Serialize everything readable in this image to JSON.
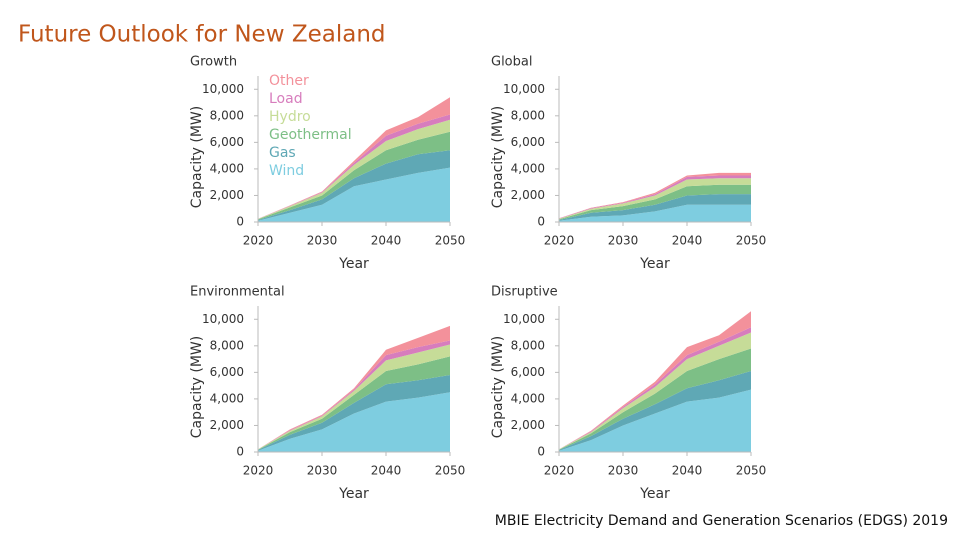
{
  "title": "Future Outlook for New Zealand",
  "source": "MBIE Electricity Demand and Generation Scenarios (EDGS) 2019",
  "chart_data": [
    {
      "type": "area",
      "stacked": true,
      "title": "Growth",
      "x_label": "Year",
      "y_label": "Capacity (MW)",
      "legend": true,
      "x": [
        2020,
        2025,
        2030,
        2035,
        2040,
        2045,
        2050
      ],
      "xlim": [
        2020,
        2050
      ],
      "xticks": [
        2020,
        2030,
        2040,
        2050
      ],
      "ylim": [
        0,
        11000
      ],
      "yticks": [
        0,
        {
          "value": 2000,
          "label": "2,000"
        },
        {
          "value": 4000,
          "label": "4,000"
        },
        {
          "value": 6000,
          "label": "6,000"
        },
        {
          "value": 8000,
          "label": "8,000"
        },
        {
          "value": 10000,
          "label": "10,000"
        }
      ],
      "series": [
        {
          "name": "Wind",
          "color": "#7ecde0",
          "values": [
            100,
            700,
            1300,
            2700,
            3200,
            3700,
            4100
          ]
        },
        {
          "name": "Gas",
          "color": "#5fa8b5",
          "values": [
            50,
            200,
            400,
            600,
            1200,
            1400,
            1300
          ]
        },
        {
          "name": "Geothermal",
          "color": "#7dbf86",
          "values": [
            50,
            200,
            300,
            600,
            1000,
            1100,
            1400
          ]
        },
        {
          "name": "Hydro",
          "color": "#c6dc98",
          "values": [
            30,
            100,
            200,
            400,
            700,
            800,
            900
          ]
        },
        {
          "name": "Load",
          "color": "#d77dbd",
          "values": [
            10,
            30,
            50,
            150,
            400,
            400,
            400
          ]
        },
        {
          "name": "Other",
          "color": "#f3919b",
          "values": [
            10,
            20,
            50,
            150,
            400,
            500,
            1300
          ]
        }
      ]
    },
    {
      "type": "area",
      "stacked": true,
      "title": "Global",
      "x_label": "Year",
      "y_label": "Capacity (MW)",
      "x": [
        2020,
        2025,
        2030,
        2035,
        2040,
        2045,
        2050
      ],
      "xlim": [
        2020,
        2050
      ],
      "xticks": [
        2020,
        2030,
        2040,
        2050
      ],
      "ylim": [
        0,
        11000
      ],
      "yticks": [
        0,
        {
          "value": 2000,
          "label": "2,000"
        },
        {
          "value": 4000,
          "label": "4,000"
        },
        {
          "value": 6000,
          "label": "6,000"
        },
        {
          "value": 8000,
          "label": "8,000"
        },
        {
          "value": 10000,
          "label": "10,000"
        }
      ],
      "series": [
        {
          "color": "#7ecde0",
          "values": [
            100,
            400,
            500,
            800,
            1300,
            1300,
            1300
          ]
        },
        {
          "color": "#5fa8b5",
          "values": [
            50,
            300,
            400,
            500,
            700,
            800,
            800
          ]
        },
        {
          "color": "#7dbf86",
          "values": [
            50,
            200,
            300,
            400,
            700,
            700,
            700
          ]
        },
        {
          "color": "#c6dc98",
          "values": [
            50,
            100,
            200,
            300,
            500,
            500,
            500
          ]
        },
        {
          "color": "#d77dbd",
          "values": [
            20,
            50,
            50,
            100,
            200,
            200,
            200
          ]
        },
        {
          "color": "#f3919b",
          "values": [
            10,
            30,
            50,
            100,
            100,
            200,
            200
          ]
        }
      ]
    },
    {
      "type": "area",
      "stacked": true,
      "title": "Environmental",
      "x_label": "Year",
      "y_label": "Capacity (MW)",
      "x": [
        2020,
        2025,
        2030,
        2035,
        2040,
        2045,
        2050
      ],
      "xlim": [
        2020,
        2050
      ],
      "xticks": [
        2020,
        2030,
        2040,
        2050
      ],
      "ylim": [
        0,
        11000
      ],
      "yticks": [
        0,
        {
          "value": 2000,
          "label": "2,000"
        },
        {
          "value": 4000,
          "label": "4,000"
        },
        {
          "value": 6000,
          "label": "6,000"
        },
        {
          "value": 8000,
          "label": "8,000"
        },
        {
          "value": 10000,
          "label": "10,000"
        }
      ],
      "series": [
        {
          "color": "#7ecde0",
          "values": [
            100,
            1000,
            1700,
            2900,
            3800,
            4100,
            4500
          ]
        },
        {
          "color": "#5fa8b5",
          "values": [
            50,
            300,
            500,
            800,
            1300,
            1300,
            1300
          ]
        },
        {
          "color": "#7dbf86",
          "values": [
            30,
            200,
            300,
            600,
            1000,
            1200,
            1400
          ]
        },
        {
          "color": "#c6dc98",
          "values": [
            20,
            100,
            200,
            300,
            800,
            900,
            900
          ]
        },
        {
          "color": "#d77dbd",
          "values": [
            0,
            50,
            50,
            100,
            400,
            400,
            300
          ]
        },
        {
          "color": "#f3919b",
          "values": [
            0,
            50,
            50,
            100,
            400,
            700,
            1100
          ]
        }
      ]
    },
    {
      "type": "area",
      "stacked": true,
      "title": "Disruptive",
      "x_label": "Year",
      "y_label": "Capacity (MW)",
      "x": [
        2020,
        2025,
        2030,
        2035,
        2040,
        2045,
        2050
      ],
      "xlim": [
        2020,
        2050
      ],
      "xticks": [
        2020,
        2030,
        2040,
        2050
      ],
      "ylim": [
        0,
        11000
      ],
      "yticks": [
        0,
        {
          "value": 2000,
          "label": "2,000"
        },
        {
          "value": 4000,
          "label": "4,000"
        },
        {
          "value": 6000,
          "label": "6,000"
        },
        {
          "value": 8000,
          "label": "8,000"
        },
        {
          "value": 10000,
          "label": "10,000"
        }
      ],
      "series": [
        {
          "color": "#7ecde0",
          "values": [
            100,
            900,
            2000,
            2900,
            3800,
            4100,
            4700
          ]
        },
        {
          "color": "#5fa8b5",
          "values": [
            50,
            300,
            500,
            700,
            1000,
            1300,
            1400
          ]
        },
        {
          "color": "#7dbf86",
          "values": [
            30,
            200,
            500,
            800,
            1300,
            1600,
            1700
          ]
        },
        {
          "color": "#c6dc98",
          "values": [
            20,
            100,
            300,
            500,
            900,
            1000,
            1200
          ]
        },
        {
          "color": "#d77dbd",
          "values": [
            0,
            50,
            100,
            200,
            300,
            300,
            400
          ]
        },
        {
          "color": "#f3919b",
          "values": [
            0,
            50,
            100,
            200,
            600,
            500,
            1200
          ]
        }
      ]
    }
  ]
}
